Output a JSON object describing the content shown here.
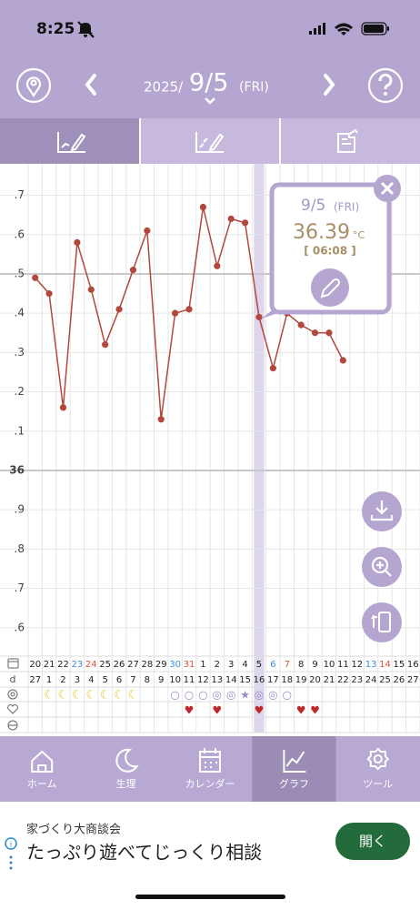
{
  "status_bar": {
    "time": "8:25"
  },
  "header": {
    "year": "2025/",
    "date": "9/5",
    "weekday": "(FRI)"
  },
  "chart_data": {
    "type": "line",
    "categories": [
      "20",
      "21",
      "22",
      "23",
      "24",
      "25",
      "26",
      "27",
      "28",
      "29",
      "30",
      "31",
      "1",
      "2",
      "3",
      "4",
      "5",
      "6",
      "7",
      "8",
      "9",
      "10",
      "11",
      "12",
      "13",
      "14",
      "15",
      "16"
    ],
    "category_colors": [
      "#222",
      "#222",
      "#222",
      "#3a8ee0",
      "#e0503c",
      "#222",
      "#222",
      "#222",
      "#222",
      "#222",
      "#3a8ee0",
      "#e0503c",
      "#222",
      "#222",
      "#222",
      "#222",
      "#222",
      "#3a8ee0",
      "#e0503c",
      "#222",
      "#222",
      "#222",
      "#222",
      "#222",
      "#3a8ee0",
      "#e0503c",
      "#222",
      "#222"
    ],
    "values": [
      36.49,
      36.45,
      36.16,
      36.58,
      36.46,
      36.32,
      36.41,
      36.51,
      36.61,
      36.13,
      36.4,
      36.41,
      36.67,
      36.52,
      36.64,
      36.63,
      36.39,
      36.26,
      36.4,
      36.37,
      36.35,
      36.35,
      36.28,
      null,
      null,
      null,
      null,
      null
    ],
    "color": "#b4473b",
    "ylim": [
      35.53,
      36.78
    ],
    "yticks": [
      {
        "value": 35.6,
        "label": ".6"
      },
      {
        "value": 35.7,
        "label": ".7"
      },
      {
        "value": 35.8,
        "label": ".8"
      },
      {
        "value": 35.9,
        "label": ".9"
      },
      36,
      {
        "value": 36.1,
        "label": ".1"
      },
      {
        "value": 36.2,
        "label": ".2"
      },
      {
        "value": 36.3,
        "label": ".3"
      },
      {
        "value": 36.4,
        "label": ".4"
      },
      {
        "value": 36.5,
        "label": ".5"
      },
      {
        "value": 36.6,
        "label": ".6"
      },
      {
        "value": 36.7,
        "label": ".7"
      }
    ],
    "grid": true,
    "selected_index": 16,
    "day_label": "d",
    "cycle_days": [
      "27",
      "1",
      "2",
      "3",
      "4",
      "5",
      "6",
      "7",
      "8",
      "9",
      "10",
      "11",
      "12",
      "13",
      "14",
      "15",
      "16",
      "17",
      "18",
      "19",
      "20",
      "21",
      "22",
      "23",
      "24",
      "25",
      "26",
      "27"
    ],
    "moon": [
      null,
      "☾",
      "☾",
      "☾",
      "☾",
      "☾",
      "☾",
      "☾",
      null,
      null,
      null,
      null,
      null,
      null,
      null,
      null,
      null,
      null,
      null,
      null,
      null,
      null,
      null,
      null,
      null,
      null,
      null,
      null
    ],
    "ovulation": [
      null,
      null,
      null,
      null,
      null,
      null,
      null,
      null,
      null,
      null,
      "○",
      "○",
      "○",
      "◎",
      "◎",
      "★",
      "◎",
      "◎",
      "○",
      null,
      null,
      null,
      null,
      null,
      null,
      null,
      null,
      null
    ],
    "heart": [
      null,
      null,
      null,
      null,
      null,
      null,
      null,
      null,
      null,
      null,
      null,
      "♥",
      null,
      "♥",
      null,
      null,
      "♥",
      null,
      null,
      "♥",
      "♥",
      null,
      null,
      null,
      null,
      null,
      null,
      null
    ]
  },
  "popup": {
    "date": "9/5",
    "weekday": "(FRI)",
    "temperature": "36.39",
    "unit": "°C",
    "time": "[ 06:08 ]"
  },
  "nav": [
    "ホーム",
    "生理",
    "カレンダー",
    "グラフ",
    "ツール"
  ],
  "nav_selected": 3,
  "ad": {
    "subtitle": "家づくり大商談会",
    "title": "たっぷり遊べてじっくり相談",
    "button": "開く"
  }
}
